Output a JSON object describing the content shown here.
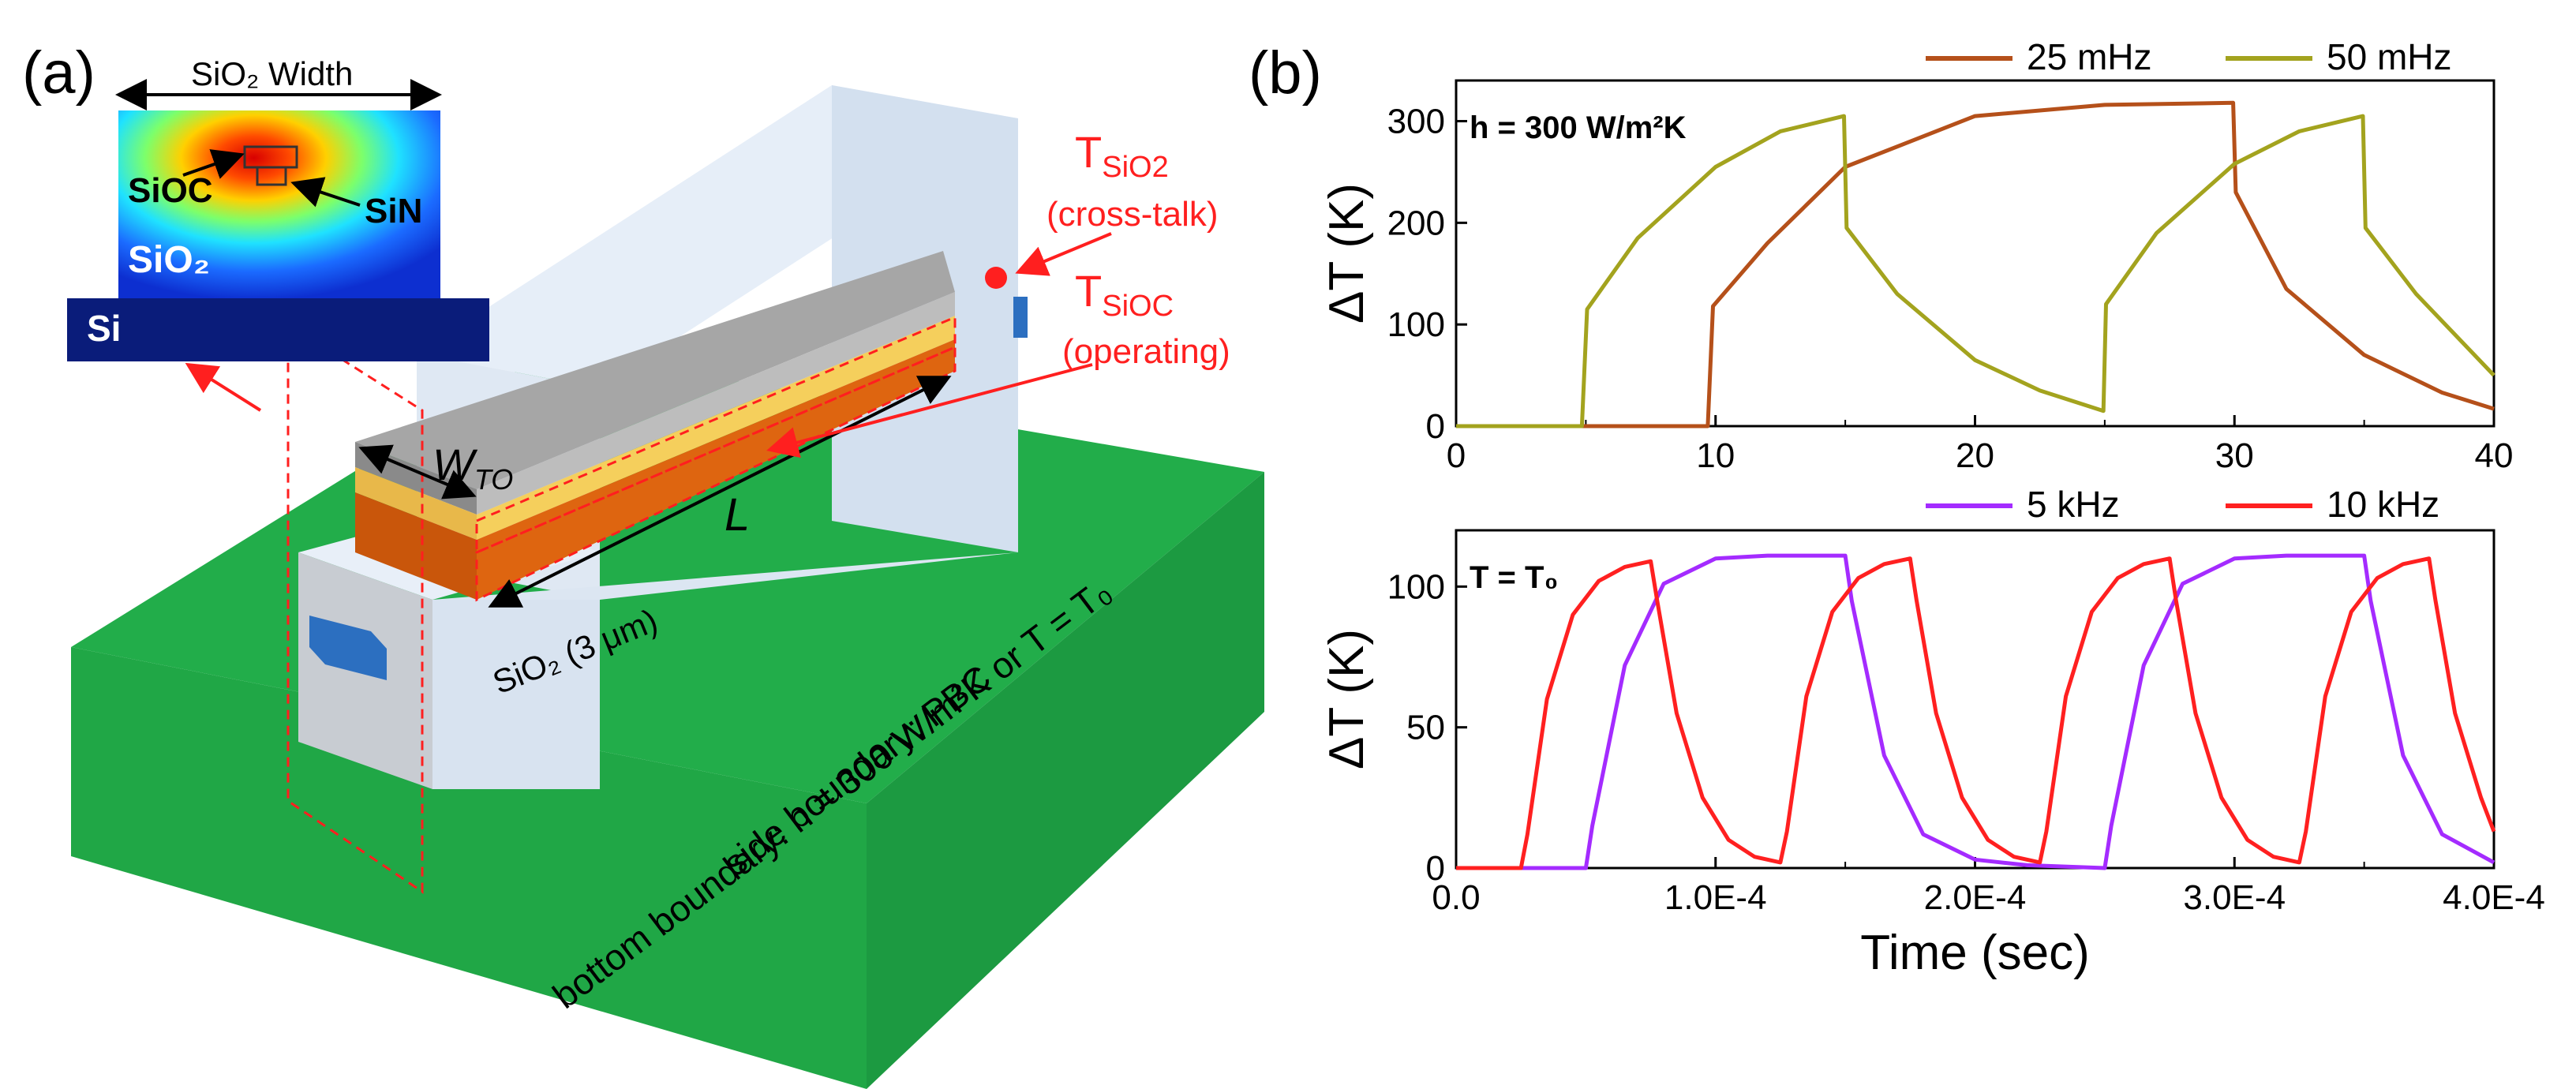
{
  "panels": {
    "a": "(a)",
    "b": "(b)"
  },
  "colors": {
    "ground": "#22ad4a",
    "oxide": "#dbe6f3",
    "heater_gray": "#9a9a9a",
    "layer_yellow": "#f5cf5c",
    "layer_orange": "#de6510",
    "pad_blue": "#2c6fc0",
    "annotation_red": "#ff1f1f",
    "series_25mHz": "#b5501a",
    "series_50mHz": "#a3a31e",
    "series_5kHz": "#a42bff",
    "series_10kHz": "#ff2020"
  },
  "schematic": {
    "inset_width_label": "SiO₂ Width",
    "inset_siocl": "SiOC",
    "inset_sin": "SiN",
    "inset_sio2": "SiO₂",
    "inset_si": "Si",
    "w_to": "W",
    "w_to_sub": "TO",
    "length": "L",
    "sio2_thickness": "SiO₂ (3 μm)",
    "t_sio2": "T",
    "t_sio2_sub": "SiO2",
    "t_sio2_desc": "(cross-talk)",
    "t_sioc": "T",
    "t_sioc_sub": "SiOC",
    "t_sioc_desc": "(operating)",
    "side_boundary": "side boundary: PBC",
    "bottom_boundary": "bottom boundary: h = 300 W/m²K or T = T₀"
  },
  "chart_data": [
    {
      "type": "line",
      "annotation": "h = 300 W/m²K",
      "xlabel": "",
      "ylabel": "ΔT (K)",
      "xlim": [
        0,
        40
      ],
      "ylim": [
        0,
        340
      ],
      "xticks": [
        0,
        10,
        20,
        30,
        40
      ],
      "xtick_labels": [
        "0",
        "10",
        "20",
        "30",
        "40"
      ],
      "yticks": [
        0,
        100,
        200,
        300
      ],
      "ytick_labels": [
        "0",
        "100",
        "200",
        "300"
      ],
      "legend": "top-right",
      "series": [
        {
          "name": "25 mHz",
          "color": "#b5501a",
          "x": [
            0,
            9.7,
            9.9,
            12,
            15,
            20,
            25,
            29.95,
            30.05,
            32,
            35,
            38,
            40
          ],
          "y": [
            0,
            0,
            118,
            180,
            255,
            305,
            316,
            318,
            230,
            135,
            70,
            33,
            17
          ]
        },
        {
          "name": "50 mHz",
          "color": "#a3a31e",
          "x": [
            0,
            4.85,
            5.05,
            7,
            10,
            12.5,
            14.95,
            15.05,
            17,
            20,
            22.5,
            24.95,
            25.05,
            27,
            30,
            32.5,
            34.95,
            35.05,
            37,
            40
          ],
          "y": [
            0,
            0,
            115,
            185,
            255,
            290,
            305,
            195,
            130,
            65,
            35,
            15,
            120,
            190,
            258,
            290,
            305,
            195,
            130,
            50
          ]
        }
      ]
    },
    {
      "type": "line",
      "annotation": "T = T₀",
      "xlabel": "Time (sec)",
      "ylabel": "ΔT (K)",
      "xlim": [
        0,
        0.0004
      ],
      "ylim": [
        0,
        120
      ],
      "xticks": [
        0,
        0.0001,
        0.0002,
        0.0003,
        0.0004
      ],
      "xtick_labels": [
        "0.0",
        "1.0E-4",
        "2.0E-4",
        "3.0E-4",
        "4.0E-4"
      ],
      "yticks": [
        0,
        50,
        100
      ],
      "ytick_labels": [
        "0",
        "50",
        "100"
      ],
      "legend": "top-right",
      "series": [
        {
          "name": "5 kHz",
          "color": "#a42bff",
          "x": [
            0,
            5e-05,
            5.25e-05,
            6.5e-05,
            8e-05,
            0.0001,
            0.00012,
            0.00015,
            0.0001525,
            0.000165,
            0.00018,
            0.0002,
            0.00022,
            0.00025,
            0.0002525,
            0.000265,
            0.00028,
            0.0003,
            0.00032,
            0.00035,
            0.0003525,
            0.000365,
            0.00038,
            0.0004
          ],
          "y": [
            0,
            0,
            15,
            72,
            101,
            110,
            111,
            111,
            95,
            40,
            12,
            3,
            1,
            0,
            15,
            72,
            101,
            110,
            111,
            111,
            95,
            40,
            12,
            2
          ]
        },
        {
          "name": "10 kHz",
          "color": "#ff2020",
          "x": [
            0,
            2.5e-05,
            2.75e-05,
            3.5e-05,
            4.5e-05,
            5.5e-05,
            6.5e-05,
            7.5e-05,
            7.75e-05,
            8.5e-05,
            9.5e-05,
            0.000105,
            0.000115,
            0.000125,
            0.0001275,
            0.000135,
            0.000145,
            0.000155,
            0.000165,
            0.000175,
            0.0001775,
            0.000185,
            0.000195,
            0.000205,
            0.000215,
            0.000225,
            0.0002275,
            0.000235,
            0.000245,
            0.000255,
            0.000265,
            0.000275,
            0.0002775,
            0.000285,
            0.000295,
            0.000305,
            0.000315,
            0.000325,
            0.0003275,
            0.000335,
            0.000345,
            0.000355,
            0.000365,
            0.000375,
            0.0003775,
            0.000385,
            0.000395,
            0.0004
          ],
          "y": [
            0,
            0,
            12,
            60,
            90,
            102,
            107,
            109,
            95,
            55,
            25,
            10,
            4,
            2,
            13,
            61,
            91,
            103,
            108,
            110,
            95,
            55,
            25,
            10,
            4,
            2,
            13,
            61,
            91,
            103,
            108,
            110,
            95,
            55,
            25,
            10,
            4,
            2,
            13,
            61,
            91,
            103,
            108,
            110,
            95,
            55,
            25,
            13
          ]
        }
      ]
    }
  ]
}
